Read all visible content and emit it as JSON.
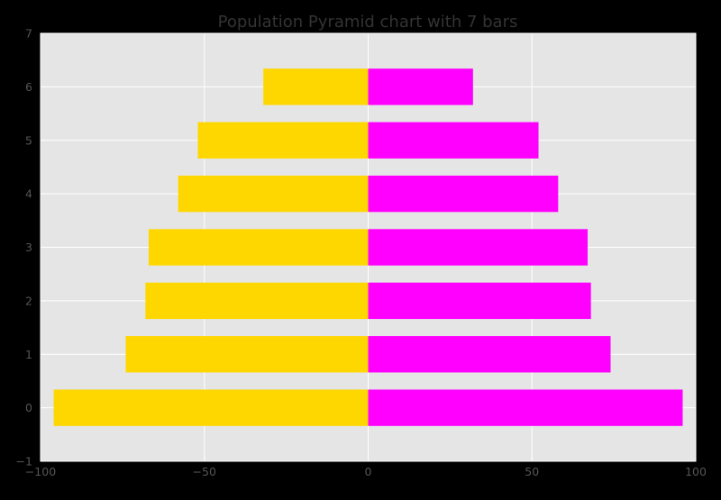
{
  "chart_data": {
    "type": "bar",
    "orientation": "horizontal",
    "variant": "population-pyramid",
    "title": "Population Pyramid chart with 7 bars",
    "xlabel": "",
    "ylabel": "",
    "categories": [
      0,
      1,
      2,
      3,
      4,
      5,
      6
    ],
    "series": [
      {
        "values": [
          -96,
          -74,
          -68,
          -67,
          -58,
          -52,
          -32
        ],
        "color": "#FFD700"
      },
      {
        "values": [
          96,
          74,
          68,
          67,
          58,
          52,
          32
        ],
        "color": "#FF00FF"
      }
    ],
    "xlim": [
      -100,
      100
    ],
    "ylim": [
      -1,
      7
    ],
    "xticks": [
      -100,
      -50,
      0,
      50,
      100
    ],
    "yticks": [
      -1,
      0,
      1,
      2,
      3,
      4,
      5,
      6,
      7
    ],
    "grid": true,
    "legend": "none",
    "colors": {
      "figure_background": "#000000",
      "plot_background": "#E5E5E5",
      "grid": "#FFFFFF",
      "title": "#333333",
      "tick_label": "#555555"
    }
  }
}
